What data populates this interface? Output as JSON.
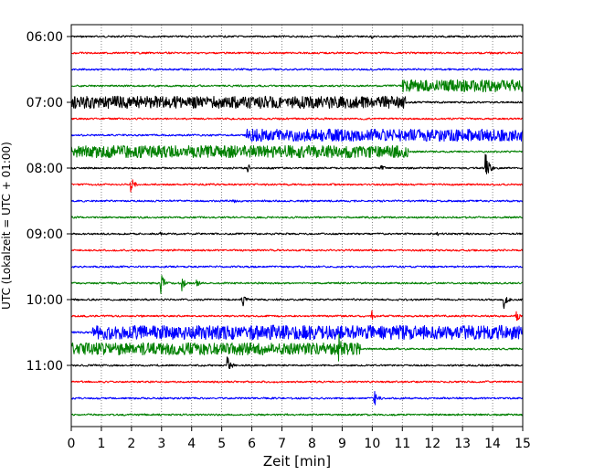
{
  "chart_data": {
    "type": "line",
    "chart_kind": "helicorder",
    "xlabel": "Zeit  [min]",
    "ylabel": "UTC (Lokalzeit = UTC + 01:00)",
    "xlim": [
      0,
      15
    ],
    "x_ticks": [
      0,
      1,
      2,
      3,
      4,
      5,
      6,
      7,
      8,
      9,
      10,
      11,
      12,
      13,
      14,
      15
    ],
    "grid": "vertical-dotted",
    "legend": "none",
    "y_tick_labels": [
      "06:00",
      "07:00",
      "08:00",
      "09:00",
      "10:00",
      "11:00"
    ],
    "trace_minutes": 15,
    "colors": [
      "#000000",
      "#ff0000",
      "#0000ff",
      "#008000"
    ],
    "traces": [
      {
        "start": "06:00",
        "color": "#000000",
        "bursts": [
          {
            "t": 10.0,
            "amp": 2
          }
        ]
      },
      {
        "start": "06:15",
        "color": "#ff0000",
        "bursts": []
      },
      {
        "start": "06:30",
        "color": "#0000ff",
        "bursts": []
      },
      {
        "start": "06:45",
        "color": "#008000",
        "bursts": [],
        "noise": [
          {
            "from": 11.0,
            "to": 15.0,
            "amp": 7
          }
        ]
      },
      {
        "start": "07:00",
        "color": "#000000",
        "bursts": [],
        "noise": [
          {
            "from": 0.0,
            "to": 11.1,
            "amp": 7
          }
        ]
      },
      {
        "start": "07:15",
        "color": "#ff0000",
        "bursts": []
      },
      {
        "start": "07:30",
        "color": "#0000ff",
        "bursts": [],
        "noise": [
          {
            "from": 5.8,
            "to": 15.0,
            "amp": 7
          }
        ]
      },
      {
        "start": "07:45",
        "color": "#008000",
        "bursts": [],
        "noise": [
          {
            "from": 0.0,
            "to": 11.2,
            "amp": 7
          }
        ]
      },
      {
        "start": "08:00",
        "color": "#000000",
        "bursts": [
          {
            "t": 5.9,
            "amp": 4
          },
          {
            "t": 10.3,
            "amp": 4
          },
          {
            "t": 13.8,
            "amp": 12
          }
        ]
      },
      {
        "start": "08:15",
        "color": "#ff0000",
        "bursts": [
          {
            "t": 2.0,
            "amp": 8
          }
        ]
      },
      {
        "start": "08:30",
        "color": "#0000ff",
        "bursts": [
          {
            "t": 5.4,
            "amp": 3
          }
        ]
      },
      {
        "start": "08:45",
        "color": "#008000",
        "bursts": []
      },
      {
        "start": "09:00",
        "color": "#000000",
        "bursts": [
          {
            "t": 3.0,
            "amp": 2
          },
          {
            "t": 12.2,
            "amp": 2
          }
        ]
      },
      {
        "start": "09:15",
        "color": "#ff0000",
        "bursts": []
      },
      {
        "start": "09:30",
        "color": "#0000ff",
        "bursts": []
      },
      {
        "start": "09:45",
        "color": "#008000",
        "bursts": [
          {
            "t": 3.0,
            "amp": 11
          },
          {
            "t": 3.7,
            "amp": 7
          },
          {
            "t": 4.2,
            "amp": 4
          }
        ]
      },
      {
        "start": "10:00",
        "color": "#000000",
        "bursts": [
          {
            "t": 5.7,
            "amp": 8
          },
          {
            "t": 14.4,
            "amp": 8
          }
        ]
      },
      {
        "start": "10:15",
        "color": "#ff0000",
        "bursts": [
          {
            "t": 10.0,
            "amp": 5
          },
          {
            "t": 14.8,
            "amp": 6
          }
        ]
      },
      {
        "start": "10:30",
        "color": "#0000ff",
        "bursts": [],
        "noise": [
          {
            "from": 0.7,
            "to": 15.0,
            "amp": 8
          }
        ]
      },
      {
        "start": "10:45",
        "color": "#008000",
        "bursts": [
          {
            "t": 8.9,
            "amp": 14
          }
        ],
        "noise": [
          {
            "from": 0.0,
            "to": 9.6,
            "amp": 7
          }
        ]
      },
      {
        "start": "11:00",
        "color": "#000000",
        "bursts": [
          {
            "t": 5.2,
            "amp": 9
          }
        ]
      },
      {
        "start": "11:15",
        "color": "#ff0000",
        "bursts": []
      },
      {
        "start": "11:30",
        "color": "#0000ff",
        "bursts": [
          {
            "t": 10.1,
            "amp": 8
          }
        ]
      },
      {
        "start": "11:45",
        "color": "#008000",
        "bursts": []
      }
    ]
  }
}
